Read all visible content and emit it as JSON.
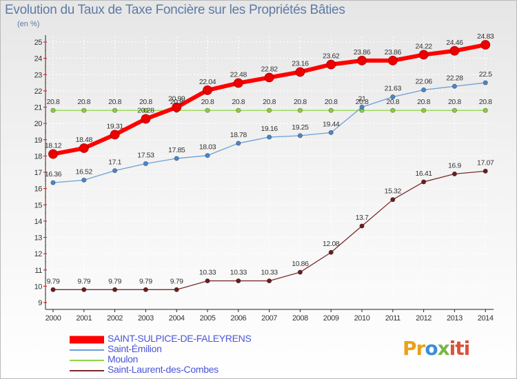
{
  "title": "Evolution du Taux de Taxe Foncière sur les Propriétés Bâties",
  "unit": "(en %)",
  "brand": {
    "p1": "Pr",
    "p2": "o",
    "p3": "x",
    "p4": "iti"
  },
  "chart_data": {
    "type": "line",
    "title": "Evolution du Taux de Taxe Foncière sur les Propriétés Bâties",
    "ylabel": "(en %)",
    "xlabel": "",
    "ylim": [
      9,
      25
    ],
    "yticks": [
      9,
      10,
      11,
      12,
      13,
      14,
      15,
      16,
      17,
      18,
      19,
      20,
      21,
      22,
      23,
      24,
      25
    ],
    "categories": [
      "2000",
      "2001",
      "2002",
      "2003",
      "2004",
      "2005",
      "2006",
      "2007",
      "2008",
      "2009",
      "2010",
      "2011",
      "2012",
      "2013",
      "2014"
    ],
    "legend_position": "bottom-left",
    "series": [
      {
        "name": "SAINT-SULPICE-DE-FALEYRENS",
        "color": "#ff0000",
        "values": [
          18.12,
          18.48,
          19.31,
          20.28,
          20.99,
          22.04,
          22.48,
          22.82,
          23.16,
          23.62,
          23.86,
          23.86,
          24.22,
          24.46,
          24.83
        ],
        "labels": [
          "18.12",
          "18.48",
          "19.31",
          "20.28",
          "20.99",
          "22.04",
          "22.48",
          "22.82",
          "23.16",
          "23.62",
          "23.86",
          "23.86",
          "24.22",
          "24.46",
          "24.83"
        ]
      },
      {
        "name": "Saint-Émilion",
        "color": "#6a9fd4",
        "values": [
          16.36,
          16.52,
          17.1,
          17.53,
          17.85,
          18.03,
          18.78,
          19.16,
          19.25,
          19.44,
          21.0,
          21.63,
          22.06,
          22.28,
          22.5
        ],
        "labels": [
          "16.36",
          "16.52",
          "17.1",
          "17.53",
          "17.85",
          "18.03",
          "18.78",
          "19.16",
          "19.25",
          "19.44",
          "21",
          "21.63",
          "22.06",
          "22.28",
          "22.5"
        ]
      },
      {
        "name": "Moulon",
        "color": "#8fd44a",
        "values": [
          20.8,
          20.8,
          20.8,
          20.8,
          20.8,
          20.8,
          20.8,
          20.8,
          20.8,
          20.8,
          20.8,
          20.8,
          20.8,
          20.8,
          20.8
        ],
        "labels": [
          "20.8",
          "20.8",
          "20.8",
          "20.8",
          "20.8",
          "20.8",
          "20.8",
          "20.8",
          "20.8",
          "20.8",
          "20.8",
          "20.8",
          "20.8",
          "20.8",
          "20.8"
        ]
      },
      {
        "name": "Saint-Laurent-des-Combes",
        "color": "#7a2a2a",
        "values": [
          9.79,
          9.79,
          9.79,
          9.79,
          9.79,
          10.33,
          10.33,
          10.33,
          10.86,
          12.08,
          13.7,
          15.32,
          16.41,
          16.9,
          17.07
        ],
        "labels": [
          "9.79",
          "9.79",
          "9.79",
          "9.79",
          "9.79",
          "10.33",
          "10.33",
          "10.33",
          "10.86",
          "12.08",
          "13.7",
          "15.32",
          "16.41",
          "16.9",
          "17.07"
        ]
      }
    ]
  }
}
